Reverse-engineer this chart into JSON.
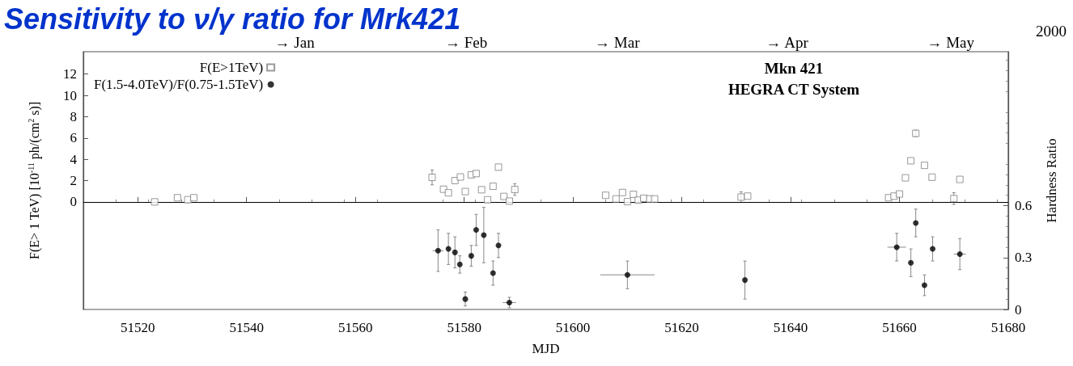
{
  "chart_data": {
    "type": "scatter",
    "title": "Sensitivity to ν/γ ratio for Mrk421",
    "xlabel": "MJD",
    "ylabel": "F(E> 1 TeV) [10$^{-11}$ ph/(cm$^{2}$ s)]",
    "y2label": "Hardness Ratio",
    "annotations": [
      "Mkn 421",
      "HEGRA CT System",
      "2000",
      "→ Jan",
      "→ Feb",
      "→ Mar",
      "→ Apr",
      "→ May"
    ],
    "xlim": [
      51510,
      51680
    ],
    "xticks": [
      51520,
      51540,
      51560,
      51580,
      51600,
      51620,
      51640,
      51660,
      51680
    ],
    "ylim": [
      -10.1,
      14.1
    ],
    "yticks": [
      0,
      2,
      4,
      6,
      8,
      10,
      12
    ],
    "y2lim": [
      0,
      1.49
    ],
    "y2ticks": [
      0,
      0.3,
      0.6
    ],
    "ref_lines": [
      {
        "axis": "y",
        "value": 0,
        "color": "#000000"
      }
    ],
    "legend": "top left",
    "grid": false,
    "series": [
      {
        "name": "F(E>1TeV)",
        "color": "#808080",
        "marker": "square",
        "x": [
          51523.1,
          51527.3,
          51529.2,
          51530.3,
          51574.1,
          51576.2,
          51577.1,
          51578.3,
          51579.3,
          51580.2,
          51581.3,
          51582.2,
          51583.2,
          51584.3,
          51585.3,
          51586.3,
          51587.3,
          51588.3,
          51589.3,
          51606.0,
          51607.9,
          51609.1,
          51610.0,
          51611.1,
          51612.0,
          51613.0,
          51614.1,
          51615.0,
          51630.9,
          51632.1,
          51658.0,
          51659.0,
          51660.0,
          51661.1,
          51662.1,
          51663.0,
          51664.6,
          51666.0,
          51670.0,
          51671.1
        ],
        "values": [
          0.0,
          0.39,
          0.2,
          0.39,
          2.3,
          1.19,
          0.85,
          2.0,
          2.34,
          0.97,
          2.54,
          2.66,
          1.14,
          0.2,
          1.47,
          3.26,
          0.51,
          0.07,
          1.16,
          0.62,
          0.28,
          0.88,
          0.02,
          0.71,
          0.16,
          0.34,
          0.28,
          0.28,
          0.45,
          0.54,
          0.39,
          0.54,
          0.74,
          2.26,
          3.86,
          6.43,
          3.43,
          2.32,
          0.31,
          2.11
        ],
        "errors": [
          null,
          null,
          null,
          null,
          0.7,
          null,
          null,
          null,
          null,
          null,
          null,
          null,
          null,
          null,
          null,
          null,
          null,
          null,
          0.55,
          null,
          null,
          null,
          null,
          null,
          null,
          null,
          null,
          null,
          0.5,
          null,
          null,
          null,
          null,
          null,
          null,
          0.3,
          null,
          null,
          0.55,
          null
        ]
      },
      {
        "name": "F(1.5-4.0TeV)/F(0.75-1.5TeV)",
        "color": "#000000",
        "marker": "circle",
        "axis": "y2",
        "x": [
          51575.2,
          51577.1,
          51578.3,
          51579.2,
          51580.2,
          51581.3,
          51582.2,
          51583.6,
          51585.3,
          51586.3,
          51588.3,
          51610.0,
          51631.6,
          51659.5,
          51662.1,
          51663.0,
          51664.6,
          51666.1,
          51671.1
        ],
        "values": [
          0.34,
          0.35,
          0.33,
          0.26,
          0.06,
          0.31,
          0.46,
          0.43,
          0.21,
          0.37,
          0.04,
          0.2,
          0.17,
          0.36,
          0.27,
          0.5,
          0.14,
          0.35,
          0.32
        ],
        "errors": [
          0.12,
          0.09,
          0.09,
          0.05,
          0.04,
          0.06,
          0.09,
          0.16,
          0.07,
          0.07,
          0.03,
          0.08,
          0.11,
          0.08,
          0.08,
          0.08,
          0.06,
          0.07,
          0.09
        ],
        "xerrors": [
          1,
          null,
          null,
          null,
          null,
          null,
          null,
          null,
          null,
          null,
          1.2,
          5,
          null,
          1.7,
          null,
          null,
          null,
          null,
          1.1
        ]
      }
    ]
  }
}
